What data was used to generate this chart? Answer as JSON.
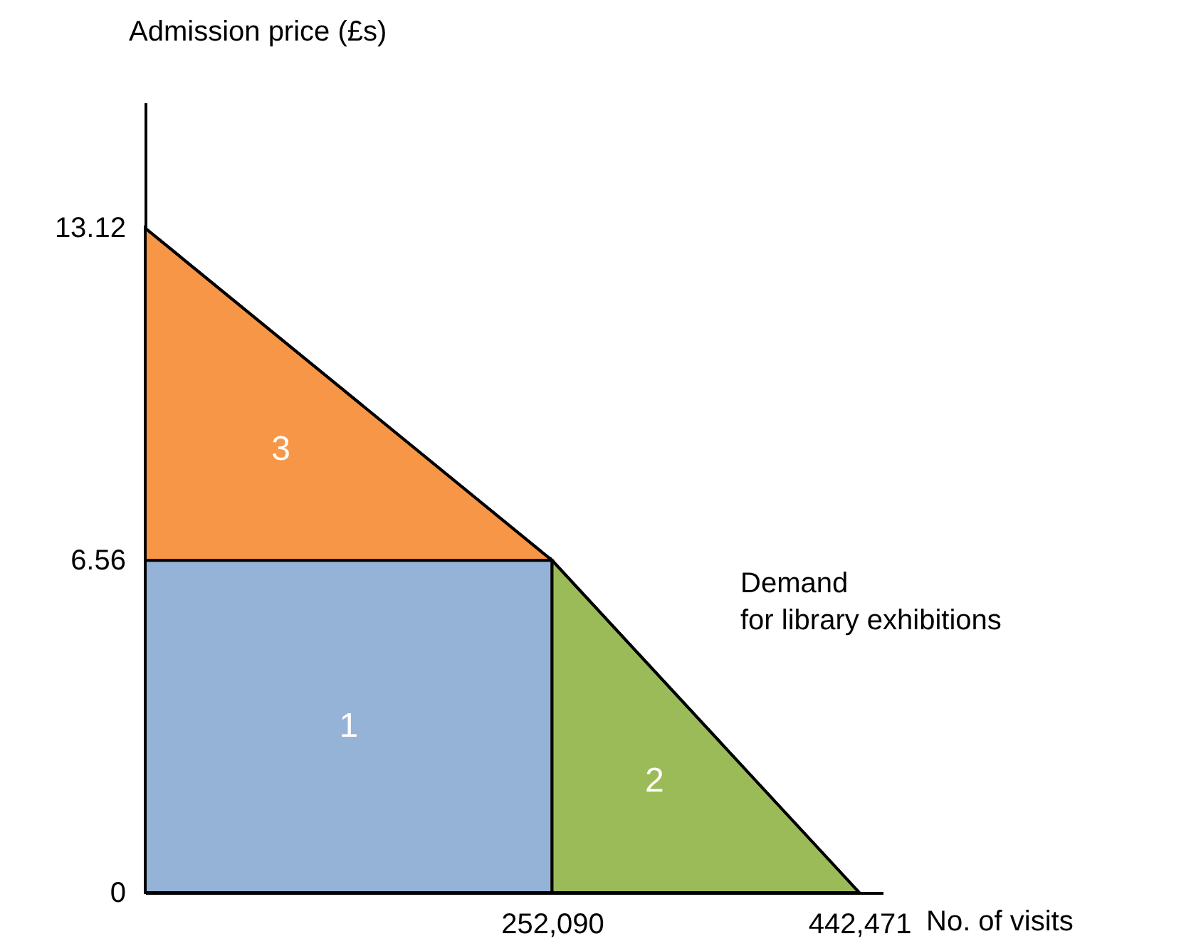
{
  "chart_data": {
    "type": "area",
    "xlabel": "No. of visits",
    "ylabel": "Admission price (£s)",
    "xlim": [
      0,
      457000
    ],
    "ylim": [
      0,
      15.6
    ],
    "xticks": [
      {
        "value": 252090,
        "label": "252,090"
      },
      {
        "value": 442471,
        "label": "442,471"
      }
    ],
    "yticks": [
      0,
      6.56,
      13.12
    ],
    "grid": false,
    "series": [
      {
        "name": "3",
        "color": "#f79646",
        "x": [
          0,
          252090
        ],
        "values": [
          13.12,
          6.56
        ]
      },
      {
        "name": "1",
        "color": "#95b3d7",
        "x": [
          0,
          252090
        ],
        "values": [
          6.56,
          6.56
        ]
      },
      {
        "name": "2",
        "color": "#9bbb59",
        "x": [
          252090,
          442471
        ],
        "values": [
          6.56,
          0
        ]
      },
      {
        "type": "line",
        "color": "#000000",
        "x": [
          0,
          252090,
          442471
        ],
        "values": [
          13.12,
          6.56,
          0
        ]
      }
    ],
    "annotations": [
      "Demand for library exhibitions"
    ]
  }
}
